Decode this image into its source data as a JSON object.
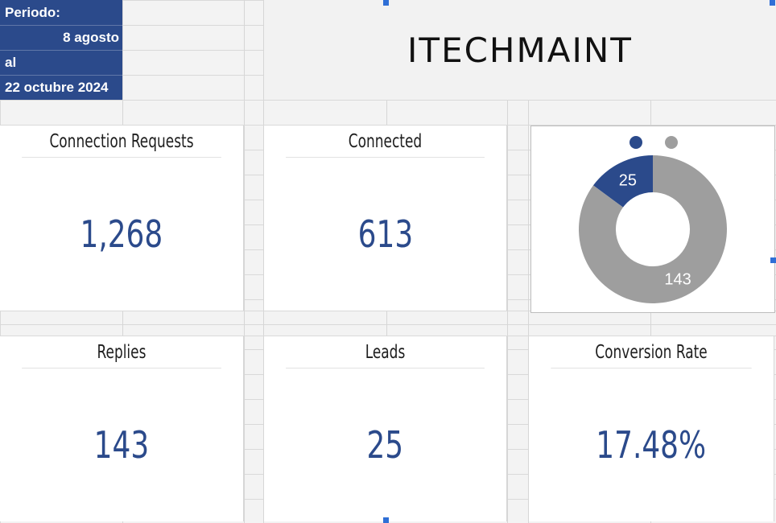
{
  "period": {
    "label": "Periodo:",
    "start": "8 agosto",
    "connector": "al",
    "end": "22 octubre 2024"
  },
  "title": "ITECHMAINT",
  "cards": {
    "connection_requests": {
      "label": "Connection Requests",
      "value": "1,268"
    },
    "connected": {
      "label": "Connected",
      "value": "613"
    },
    "replies": {
      "label": "Replies",
      "value": "143"
    },
    "leads": {
      "label": "Leads",
      "value": "25"
    },
    "conversion_rate": {
      "label": "Conversion Rate",
      "value": "17.48%"
    }
  },
  "colors": {
    "accent": "#2b4a8b",
    "gray": "#9e9e9e"
  },
  "chart_data": {
    "type": "pie",
    "donut": true,
    "values": [
      25,
      143
    ],
    "labels": [
      "25",
      "143"
    ],
    "colors": [
      "#2b4a8b",
      "#9e9e9e"
    ],
    "legend": "top"
  }
}
